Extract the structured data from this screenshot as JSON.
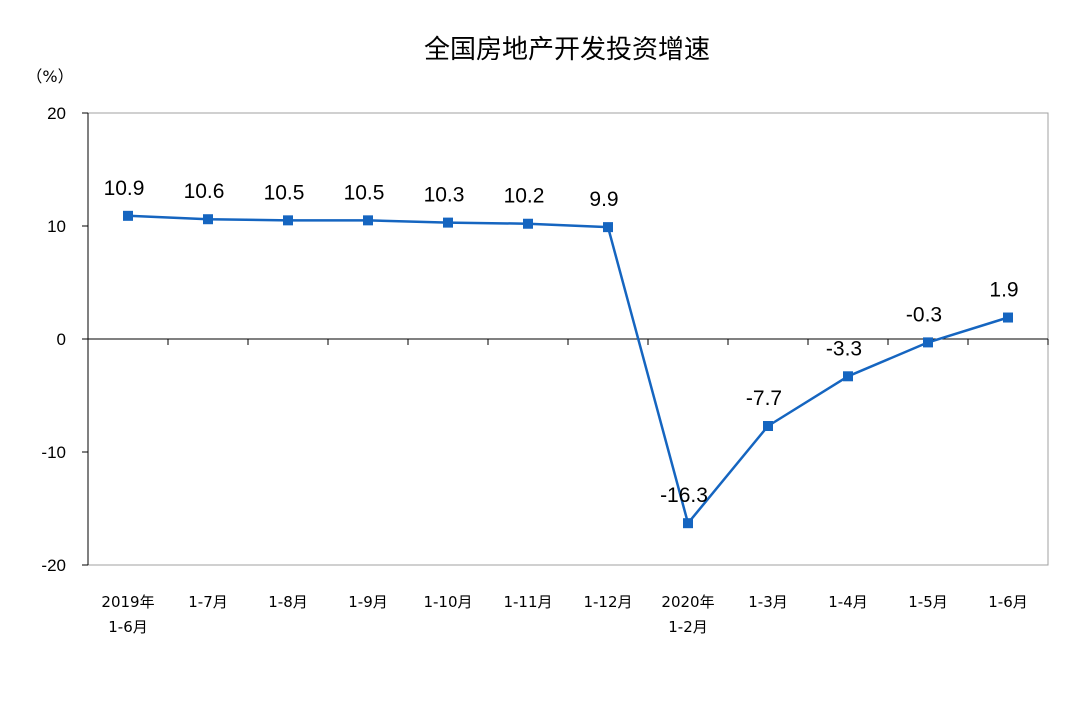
{
  "chart_data": {
    "type": "line",
    "title": "全国房地产开发投资增速",
    "unit_label": "（%）",
    "categories": [
      [
        "2019年",
        "1-6月"
      ],
      [
        "1-7月"
      ],
      [
        "1-8月"
      ],
      [
        "1-9月"
      ],
      [
        "1-10月"
      ],
      [
        "1-11月"
      ],
      [
        "1-12月"
      ],
      [
        "2020年",
        "1-2月"
      ],
      [
        "1-3月"
      ],
      [
        "1-4月"
      ],
      [
        "1-5月"
      ],
      [
        "1-6月"
      ]
    ],
    "series": [
      {
        "values": [
          10.9,
          10.6,
          10.5,
          10.5,
          10.3,
          10.2,
          9.9,
          -16.3,
          -7.7,
          -3.3,
          -0.3,
          1.9
        ]
      }
    ],
    "ylim": [
      -20,
      20
    ],
    "yticks": [
      20,
      10,
      0,
      -10,
      -20
    ],
    "grid": false,
    "legend": "none",
    "colors": {
      "line": "#1565C0",
      "marker": "#1565C0",
      "axis": "#000000"
    }
  }
}
